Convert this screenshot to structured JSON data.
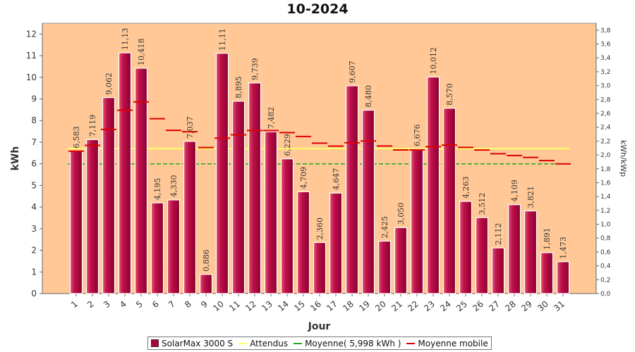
{
  "title": "10-2024",
  "chart_data": {
    "type": "bar",
    "title": "10-2024",
    "xlabel": "Jour",
    "ylabel": "kWh",
    "y2label": "kWh/kWp",
    "ylim": [
      0,
      12.5
    ],
    "y2lim": [
      0,
      3.9
    ],
    "yticks": [
      "0",
      "1",
      "2",
      "3",
      "4",
      "5",
      "6",
      "7",
      "8",
      "9",
      "10",
      "11",
      "12"
    ],
    "y2ticks": [
      "0,0",
      "0,2",
      "0,4",
      "0,6",
      "0,8",
      "1,0",
      "1,2",
      "1,4",
      "1,6",
      "1,8",
      "2,0",
      "2,2",
      "2,4",
      "2,6",
      "2,8",
      "3,0",
      "3,2",
      "3,4",
      "3,6",
      "3,8"
    ],
    "categories": [
      "1",
      "2",
      "3",
      "4",
      "5",
      "6",
      "7",
      "8",
      "9",
      "10",
      "11",
      "12",
      "13",
      "14",
      "15",
      "16",
      "17",
      "18",
      "19",
      "20",
      "21",
      "22",
      "23",
      "24",
      "25",
      "26",
      "27",
      "28",
      "29",
      "30",
      "31"
    ],
    "series": [
      {
        "name": "SolarMax 3000 S",
        "type": "bar",
        "color": "#b00040",
        "values": [
          6.583,
          7.119,
          9.062,
          11.13,
          10.418,
          4.195,
          4.33,
          7.037,
          0.886,
          11.11,
          8.895,
          9.739,
          7.482,
          6.229,
          4.709,
          2.36,
          4.647,
          9.607,
          8.48,
          2.425,
          3.05,
          6.676,
          10.012,
          8.57,
          4.263,
          3.512,
          2.112,
          4.109,
          3.821,
          1.891,
          1.473
        ],
        "labels": [
          "6,583",
          "7,119",
          "9,062",
          "11,13",
          "10,418",
          "4,195",
          "4,330",
          "7,037",
          "0,886",
          "11,11",
          "8,895",
          "9,739",
          "7,482",
          "6,229",
          "4,709",
          "2,360",
          "4,647",
          "9,607",
          "8,480",
          "2,425",
          "3,050",
          "6,676",
          "10,012",
          "8,570",
          "4,263",
          "3,512",
          "2,112",
          "4,109",
          "3,821",
          "1,891",
          "1,473"
        ]
      },
      {
        "name": "Attendus",
        "type": "line",
        "color": "#ffff66",
        "constant": 6.7
      },
      {
        "name": "Moyenne( 5,998 kWh )",
        "type": "line",
        "color": "#22aa22",
        "constant": 5.998
      },
      {
        "name": "Moyenne mobile",
        "type": "step",
        "color": "#dd0000",
        "values": [
          6.583,
          6.851,
          7.588,
          8.474,
          8.862,
          8.084,
          7.548,
          7.483,
          6.75,
          7.186,
          7.341,
          7.541,
          7.537,
          7.444,
          7.262,
          6.955,
          6.819,
          6.975,
          7.054,
          6.822,
          6.642,
          6.644,
          6.79,
          6.864,
          6.76,
          6.635,
          6.467,
          6.383,
          6.294,
          6.147,
          5.998
        ]
      }
    ],
    "legend_position": "bottom"
  }
}
